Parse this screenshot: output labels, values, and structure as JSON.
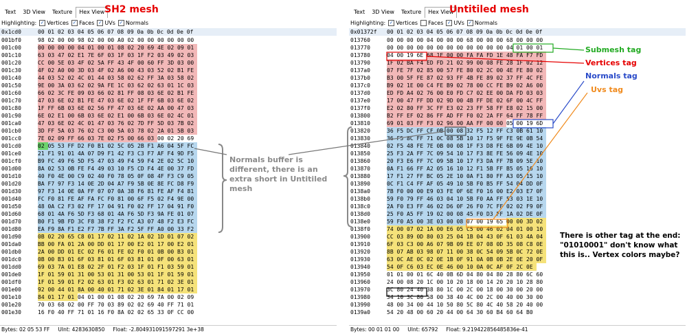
{
  "left": {
    "title": "SH2 mesh",
    "tabs": [
      "Text",
      "3D View",
      "Texture",
      "Hex View"
    ],
    "highlight": {
      "label": "Highlighting:",
      "items": [
        {
          "name": "Vertices",
          "checked": true
        },
        {
          "name": "Faces",
          "checked": true
        },
        {
          "name": "UVs",
          "checked": true
        },
        {
          "name": "Normals",
          "checked": true
        }
      ]
    },
    "offset": "0x1cd0",
    "columns": "00 01 02 03 04 05 06 07 08 09 0a 0b 0c 0d 0e 0f",
    "rows": [
      {
        "a": "001bf0",
        "b": "98 02 00 00 98 02 00 00 A0 02 00 00 00 00 00 00",
        "c": "xxxxxxxxxxxxxxxx"
      },
      {
        "a": "001c00",
        "b": "00 00 00 00 04 01 00 01 08 02 20 69 4E 02 09 01",
        "c": "rrrrrrrrrrrrrrrr"
      },
      {
        "a": "001c10",
        "b": "63 03 47 02 E1 7E 6F 03 1F 03 1F F2 03 49 02 03",
        "c": "rrrrrrrrrrrrrrrr"
      },
      {
        "a": "001c20",
        "b": "CC 00 5E 03 4F 02 5A FF 43 4F 00 60 FF 3D 03 00",
        "c": "rrrrrrrrrrrrrrrr"
      },
      {
        "a": "001c30",
        "b": "4F 02 A0 00 3D 03 4F 02 A6 00 43 03 52 02 B1 FE",
        "c": "rrrrrrrrrrrrrrrr"
      },
      {
        "a": "001c40",
        "b": "44 03 52 02 4C 01 44 03 58 02 62 FF 3A 03 58 02",
        "c": "rrrrrrrrrrrrrrrr"
      },
      {
        "a": "001c50",
        "b": "9E 00 3A 03 62 02 9A FE 1C 03 62 02 63 01 1C 03",
        "c": "rrrrrrrrrrrrrrrr"
      },
      {
        "a": "001c60",
        "b": "66 02 3C FE 09 03 66 02 81 FF 08 03 6E 02 B1 FE",
        "c": "rrrrrrrrrrrrrrrr"
      },
      {
        "a": "001c70",
        "b": "47 03 6E 02 B1 FE 47 03 6E 02 1F FF 6B 03 6E 02",
        "c": "rrrrrrrrrrrrrrrr"
      },
      {
        "a": "001c80",
        "b": "1F FF 6B 03 6E 02 56 FF 47 03 6E 02 AA 00 47 03",
        "c": "rrrrrrrrrrrrrrrr"
      },
      {
        "a": "001c90",
        "b": "6E 02 E1 00 6B 03 6E 02 E1 00 6B 03 6E 02 4C 01",
        "c": "rrrrrrrrrrrrrrrr"
      },
      {
        "a": "001ca0",
        "b": "47 03 6E 02 4C 01 47 03 76 02 7D FF 5D 03 7B 02",
        "c": "rrrrrrrrrrrrrrrr"
      },
      {
        "a": "001cb0",
        "b": "3D FF 5A 03 76 02 C3 00 5A 03 78 02 2A 01 5B 03",
        "c": "rrrrrrrrrrrrrrrr"
      },
      {
        "a": "001cc0",
        "b": "7E 02 09 FF 66 03 7E 02 F5 00 66 03 00 02 20 69",
        "c": "rrrrrrrrrrrrxxxx"
      },
      {
        "a": "001cd0",
        "b": "02 05 53 FF D2 F0 B1 02 5C 05 2B F1 A6 04 5F FC",
        "c": "gbbbbbbbbbbbbbbb"
      },
      {
        "a": "001ce0",
        "b": "21 F1 91 01 4A 07 D9 F1 42 F3 C3 F7 AF F4 9D F5",
        "c": "bbbbbbbbbbbbbbbb"
      },
      {
        "a": "001cf0",
        "b": "B9 FC 49 F6 5D F5 47 03 49 F4 59 F4 2E 02 5C 10",
        "c": "bbbbbbbbbbbbbbbb"
      },
      {
        "a": "001d00",
        "b": "8A 02 53 0B FE F4 49 03 10 F5 CD F4 4E 00 37 FD",
        "c": "bbbbbbbbbbbbbbbb"
      },
      {
        "a": "001d10",
        "b": "40 F0 4E 00 C9 02 40 F0 78 05 0F 08 4F F3 C9 05",
        "c": "bbbbbbbbbbbbbbbb"
      },
      {
        "a": "001d20",
        "b": "BA F7 97 F3 14 0E 2D 04 A7 F9 5B 0E 8E FC D8 F9",
        "c": "bbbbbbbbbbbbbbbb"
      },
      {
        "a": "001d30",
        "b": "97 F3 14 0E 0A FF 07 07 0A 38 F6 81 FE AF F4 81",
        "c": "bbbbbbbbbbbbbbbb"
      },
      {
        "a": "001d40",
        "b": "FC F0 81 FE AF FA FC F0 81 00 6F F5 02 F4 9E 00",
        "c": "bbbbbbbbbbbbbbbb"
      },
      {
        "a": "001d50",
        "b": "48 0A C2 F3 02 FF 17 04 91 F0 02 FF 17 04 91 F0",
        "c": "bbbbbbbbbbbbbbbb"
      },
      {
        "a": "001d60",
        "b": "68 01 4A F6 5D F3 68 01 4A F6 5D F3 9A FE 01 07",
        "c": "bbbbbbbbbbbbbbbb"
      },
      {
        "a": "001d70",
        "b": "B0 F1 9B FD 3C F8 38 F2 F2 FC A3 07 48 F2 E3 FC",
        "c": "bbbbbbbbbbbbbbbb"
      },
      {
        "a": "001d80",
        "b": "EA F9 8A F1 E2 F7 7B FF 3A F2 5F FF A0 00 33 F2",
        "c": "bbbbbbbbbbbbbbbb"
      },
      {
        "a": "001d90",
        "b": "0B 02 20 65 C8 01 17 02 11 02 1A 02 1D 01 07 02",
        "c": "yyyyyyyyyyyyyyyy"
      },
      {
        "a": "001da0",
        "b": "BB 00 FA 01 2A 00 DD 01 17 00 E2 01 17 00 E2 01",
        "c": "yyyyyyyyyyyyyyyy"
      },
      {
        "a": "001db0",
        "b": "2A 00 DD 01 EC 02 F6 01 FE 02 F0 01 0B 00 B3 01",
        "c": "yyyyyyyyyyyyyyyy"
      },
      {
        "a": "001dc0",
        "b": "0B 00 B3 01 6F 03 81 01 6F 03 81 01 0F 00 63 01",
        "c": "yyyyyyyyyyyyyyyy"
      },
      {
        "a": "001dd0",
        "b": "69 03 7A 01 E8 02 2F 01 F2 03 1F 01 F1 03 59 01",
        "c": "yyyyyyyyyyyyyyyy"
      },
      {
        "a": "001de0",
        "b": "1F 01 59 01 31 00 53 01 31 00 53 01 1F 01 59 01",
        "c": "yyyyyyyyyyyyyyyy"
      },
      {
        "a": "001df0",
        "b": "1F 01 59 01 F2 02 63 01 F3 02 63 01 71 02 3E 01",
        "c": "yyyyyyyyyyyyyyyy"
      },
      {
        "a": "001e00",
        "b": "92 00 44 01 8A 00 40 01 71 02 3E 01 84 01 17 01",
        "c": "yyyyyyyyyyyyyyyy"
      },
      {
        "a": "001e10",
        "b": "84 01 17 01 04 01 00 01 08 02 20 69 7A 00 02 09",
        "c": "yyyyxxxxxxxxxxxx"
      },
      {
        "a": "001e20",
        "b": "70 03 68 02 00 FF 70 03 89 02 02 69 40 FF 71 01",
        "c": "xxxxxxxxxxxxxxxx"
      },
      {
        "a": "001e30",
        "b": "16 F0 40 FF 71 01 16 F0 8A 02 02 65 33 0F CC 00",
        "c": "xxxxxxxxxxxxxxxx"
      }
    ],
    "status": {
      "bytes": "Bytes: 02 05 53 FF",
      "uint": "UInt: 4283630850",
      "float": "Float: -2.804931091597291 3e+38"
    }
  },
  "right": {
    "title": "Untitiled mesh",
    "tabs": [
      "Text",
      "3D View",
      "Texture",
      "Hex View"
    ],
    "highlight": {
      "label": "Highlighting:",
      "items": [
        {
          "name": "Vertices",
          "checked": true
        },
        {
          "name": "Faces",
          "checked": false
        },
        {
          "name": "UVs",
          "checked": true
        },
        {
          "name": "Normals",
          "checked": true
        }
      ]
    },
    "offset": "0x01372f",
    "columns": "00 01 02 03 04 05 06 07 08 09 0a 0b 0c 0d 0e 0f",
    "rows": [
      {
        "a": "013760",
        "b": "00 00 00 00 04 00 00 00 68 00 00 00 68 00 00 00",
        "c": "xxxxxxxxxxxxxxxx"
      },
      {
        "a": "013770",
        "b": "00 00 00 00 00 00 00 00 00 00 00 00 04 01 00 01",
        "c": "xxxxxxxxxxxxxxxx"
      },
      {
        "a": "013780",
        "b": "04 00 19 6E 68 1E 00 00 FA FA FD 1E 48 FA F7 FD",
        "c": "xxxxrrrrrrrrrrrr"
      },
      {
        "a": "013790",
        "b": "1F 02 BA F4 ED FD 21 02 99 00 08 FE 28 1F 02 12",
        "c": "rrrrrrrrrrrrrrrr"
      },
      {
        "a": "0137a0",
        "b": "07 FE 7F 02 85 00 57 FE 80 02 2C 00 4E FE 80 02",
        "c": "rrrrrrrrrrrrrrrr"
      },
      {
        "a": "0137b0",
        "b": "B3 00 5F FE 87 02 93 FF 4B FE 89 02 37 FF 4C FE",
        "c": "rrrrrrrrrrrrrrrr"
      },
      {
        "a": "0137c0",
        "b": "B9 02 1E 00 C4 FE B9 02 78 00 CC FE B9 02 A6 00",
        "c": "rrrrrrrrrrrrrrrr"
      },
      {
        "a": "0137d0",
        "b": "ED FD A4 02 76 00 E0 FD C7 02 EE 00 DA FD 03 03",
        "c": "rrrrrrrrrrrrrrrr"
      },
      {
        "a": "0137e0",
        "b": "17 00 47 FF DD 02 9D 00 4B FF DE 02 6F 00 4C FF",
        "c": "rrrrrrrrrrrrrrrr"
      },
      {
        "a": "0137f0",
        "b": "E2 02 80 FF 3C FF E3 02 23 FF 58 FF E8 02 15 00",
        "c": "rrrrrrrrrrrrrrrr"
      },
      {
        "a": "013800",
        "b": "B2 FF EF 02 86 FF AD FF F0 02 2A FF 64 FF 78 FF",
        "c": "rrrrrrrrrrrrrrrr"
      },
      {
        "a": "013810",
        "b": "69 01 03 FF F3 02 96 00 AA FF 00 00 05 00 19 6D",
        "c": "rrrrrrrrrrrrxxxx"
      },
      {
        "a": "013820",
        "b": "36 F5 DC FF CF 0B 00 08 32 F5 12 FF C3 0B 61 10",
        "c": "bbbbbbbbbbbbbbbb"
      },
      {
        "a": "013830",
        "b": "36 F5 8C FF 71 0C 08 5B 10 17 F5 9F FE 9E 0B 54",
        "c": "bbbbbbbbbbbbbbbb"
      },
      {
        "a": "013840",
        "b": "02 F5 48 FE 7E 0B 00 08 1F F3 D8 FE 6B 09 4E 10",
        "c": "bbbbbbbbbbbbbbbb"
      },
      {
        "a": "013850",
        "b": "25 F3 2A FF 7C 09 54 10 17 F3 8E FE 56 09 4E 10",
        "c": "bbbbbbbbbbbbbbbb"
      },
      {
        "a": "013860",
        "b": "20 F3 E6 FF 7C 09 5B 10 17 F3 DA FF 7B 09 5E 10",
        "c": "bbbbbbbbbbbbbbbb"
      },
      {
        "a": "013870",
        "b": "0A F1 66 FF A2 05 16 10 12 F1 5B FF B5 05 16 10",
        "c": "bbbbbbbbbbbbbbbb"
      },
      {
        "a": "013880",
        "b": "17 F1 27 FF BC 05 2E 10 0A F1 80 FF A3 05 15 10",
        "c": "bbbbbbbbbbbbbbbb"
      },
      {
        "a": "013890",
        "b": "0C F1 C4 FF AF 05 49 10 5B F0 B5 FF 54 04 DD 0F",
        "c": "bbbbbbbbbbbbbbbb"
      },
      {
        "a": "0138a0",
        "b": "7B F0 00 00 E9 03 FE 0F 6E F0 16 00 E2 03 E7 0F",
        "c": "bbbbbbbbbbbbbbbb"
      },
      {
        "a": "0138b0",
        "b": "59 F0 79 FF 46 03 04 10 5B F0 AA FF 53 03 1E 10",
        "c": "bbbbbbbbbbbbbbbb"
      },
      {
        "a": "0138c0",
        "b": "2A F0 E3 FF 46 02 D6 0F 26 F0 7C FF 02 02 F9 0F",
        "c": "bbbbbbbbbbbbbbbb"
      },
      {
        "a": "0138d0",
        "b": "25 F0 A5 FF 19 02 00 08 45 F0 D3 FF 1A 02 DE 0F",
        "c": "bbbbbbbbbbbbbbbb"
      },
      {
        "a": "0138e0",
        "b": "59 F0 A5 00 3E 03 00 08 07 00 19 65 00 00 3D 02",
        "c": "bbbbbbbbxxxxyyyy"
      },
      {
        "a": "0138f0",
        "b": "74 00 07 02 1A 00 E6 05 C5 00 46 02 04 01 00 10",
        "c": "yyyyyyyyyyyyyyyy"
      },
      {
        "a": "013900",
        "b": "CC 03 89 0D 80 03 25 04 1B 04 43 0F 61 03 4A 04",
        "c": "yyyyyyyyyyyyyyyy"
      },
      {
        "a": "013910",
        "b": "6F 03 C3 00 A6 07 9B 09 EE 07 08 0D 35 08 C8 0E",
        "c": "yyyyyyyyyyyyyyyy"
      },
      {
        "a": "013920",
        "b": "8B 07 AB 03 98 07 11 00 38 0C 54 09 5B 0C 72 0E",
        "c": "yyyyyyyyyyyyyyyy"
      },
      {
        "a": "013930",
        "b": "63 0C AE 0C 02 0E 1B 0F 91 0A 0B 0B 2E 0E 20 0F",
        "c": "yyyyyyyyyyyyyyyy"
      },
      {
        "a": "013940",
        "b": "54 0F C6 03 EC 0E 46 00 10 0A 0C AF 0F 2C 0E",
        "c": "yyyyyyyyyyyyyyyy"
      },
      {
        "a": "013950",
        "b": "01 01 00 01 6C 40 0B 6D 04 80 04 80 28 80 6C 60",
        "c": "xxxxxxxxxxxxxxxx"
      },
      {
        "a": "013960",
        "b": "24 00 08 20 1C 00 10 20 18 00 14 20 20 10 28 80",
        "c": "xxxxxxxxxxxxxxxx"
      },
      {
        "a": "013970",
        "b": "3C 80 24 40 38 80 1C 00 2C 00 18 00 30 00 20 00",
        "c": "xxxxxxxxxxxxxxxx"
      },
      {
        "a": "013980",
        "b": "34 10 3C 80 58 00 38 40 4C 00 2C 00 40 00 30 00",
        "c": "xxxxxxxxxxxxxxxx"
      },
      {
        "a": "013990",
        "b": "48 00 34 00 44 10 50 80 5C 80 4C 40 58 20 40 00",
        "c": "xxxxxxxxxxxxxxxx"
      },
      {
        "a": "0139a0",
        "b": "54 20 48 00 60 20 44 00 64 30 60 B4 60 64 B0",
        "c": "xxxxxxxxxxxxxxxx"
      }
    ],
    "status": {
      "bytes": "Bytes: 00 01 01 00",
      "uint": "UInt: 65792",
      "float": "Float: 9.219422856485836e-41"
    }
  },
  "annotations": {
    "submesh": "Submesh tag",
    "vertices": "Vertices tag",
    "normals": "Normals tag",
    "uvs": "Uvs tag",
    "normals_note": "Normals buffer is different, there is an extra short in Untitiled mesh",
    "end_note": "There is other tag at the end: \"01010001\" don't know what this is.. Vertex colors maybe?"
  },
  "colors": {
    "vertices": "#f2b8b8",
    "normals": "#b7d7ee",
    "uvs": "#f5e27a",
    "green": "#22aa22",
    "red": "#e60000",
    "blue": "#2a4bc9",
    "orange": "#f08a1c"
  }
}
